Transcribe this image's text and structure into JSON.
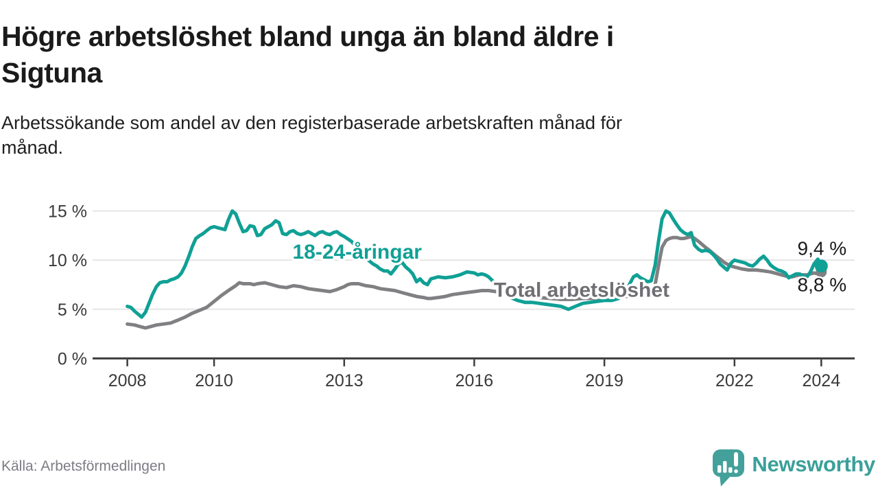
{
  "header": {
    "title_line1": "Högre arbetslöshet bland unga än bland äldre i",
    "title_line2": "Sigtuna",
    "subtitle_line1": "Arbetssökande som andel av den registerbaserade arbetskraften månad för",
    "subtitle_line2": "månad."
  },
  "footer": {
    "source": "Källa: Arbetsförmedlingen",
    "brand": "Newsworthy"
  },
  "colors": {
    "teal": "#10a095",
    "gray_line": "#808083",
    "gray_label": "#6f6f74",
    "text_dark": "#1a1a1a",
    "axis": "#3d3d3d",
    "tick_text": "#3a3a3a",
    "grid": "#e5e5e5",
    "logo_teal": "#44a09a"
  },
  "chart_data": {
    "type": "line",
    "title": "Högre arbetslöshet bland unga än bland äldre i Sigtuna",
    "subtitle": "Arbetssökande som andel av den registerbaserade arbetskraften månad för månad.",
    "x_axis": {
      "min": 2007.2,
      "max": 2024.77,
      "ticks": [
        2008,
        2010,
        2013,
        2016,
        2019,
        2022,
        2024
      ]
    },
    "y_axis": {
      "min": 0,
      "max": 15,
      "ticks": [
        0,
        5,
        10,
        15
      ],
      "tick_suffix": " %"
    },
    "grid": "horizontal",
    "legend_position": "inline-labels",
    "series": [
      {
        "name": "Total arbetslöshet",
        "color": "#808083",
        "end_value_label": "8,8 %",
        "end_dot_r": 8,
        "points": [
          [
            2008.0,
            3.5
          ],
          [
            2008.17,
            3.4
          ],
          [
            2008.33,
            3.2
          ],
          [
            2008.42,
            3.1
          ],
          [
            2008.5,
            3.2
          ],
          [
            2008.67,
            3.4
          ],
          [
            2008.83,
            3.5
          ],
          [
            2009.0,
            3.6
          ],
          [
            2009.17,
            3.9
          ],
          [
            2009.33,
            4.2
          ],
          [
            2009.5,
            4.6
          ],
          [
            2009.67,
            4.9
          ],
          [
            2009.83,
            5.2
          ],
          [
            2010.0,
            5.8
          ],
          [
            2010.17,
            6.4
          ],
          [
            2010.33,
            6.9
          ],
          [
            2010.5,
            7.4
          ],
          [
            2010.58,
            7.7
          ],
          [
            2010.67,
            7.6
          ],
          [
            2010.83,
            7.6
          ],
          [
            2010.92,
            7.5
          ],
          [
            2011.0,
            7.6
          ],
          [
            2011.17,
            7.7
          ],
          [
            2011.33,
            7.5
          ],
          [
            2011.5,
            7.3
          ],
          [
            2011.67,
            7.2
          ],
          [
            2011.83,
            7.4
          ],
          [
            2012.0,
            7.3
          ],
          [
            2012.17,
            7.1
          ],
          [
            2012.33,
            7.0
          ],
          [
            2012.5,
            6.9
          ],
          [
            2012.67,
            6.8
          ],
          [
            2012.83,
            7.0
          ],
          [
            2013.0,
            7.3
          ],
          [
            2013.08,
            7.5
          ],
          [
            2013.17,
            7.6
          ],
          [
            2013.33,
            7.6
          ],
          [
            2013.5,
            7.4
          ],
          [
            2013.67,
            7.3
          ],
          [
            2013.83,
            7.1
          ],
          [
            2014.0,
            7.0
          ],
          [
            2014.17,
            6.9
          ],
          [
            2014.33,
            6.7
          ],
          [
            2014.5,
            6.5
          ],
          [
            2014.67,
            6.3
          ],
          [
            2014.83,
            6.2
          ],
          [
            2014.92,
            6.1
          ],
          [
            2015.0,
            6.1
          ],
          [
            2015.17,
            6.2
          ],
          [
            2015.33,
            6.3
          ],
          [
            2015.5,
            6.5
          ],
          [
            2015.67,
            6.6
          ],
          [
            2015.83,
            6.7
          ],
          [
            2016.0,
            6.8
          ],
          [
            2016.17,
            6.9
          ],
          [
            2016.33,
            6.9
          ],
          [
            2016.5,
            6.8
          ],
          [
            2016.67,
            6.6
          ],
          [
            2016.83,
            6.5
          ],
          [
            2017.0,
            6.4
          ],
          [
            2017.25,
            6.3
          ],
          [
            2017.5,
            6.2
          ],
          [
            2017.75,
            6.1
          ],
          [
            2018.0,
            6.0
          ],
          [
            2018.25,
            6.0
          ],
          [
            2018.5,
            6.1
          ],
          [
            2018.75,
            6.1
          ],
          [
            2019.0,
            6.2
          ],
          [
            2019.25,
            6.2
          ],
          [
            2019.5,
            6.3
          ],
          [
            2019.75,
            6.4
          ],
          [
            2020.0,
            6.5
          ],
          [
            2020.08,
            6.6
          ],
          [
            2020.17,
            7.5
          ],
          [
            2020.25,
            9.5
          ],
          [
            2020.33,
            11.3
          ],
          [
            2020.42,
            12.0
          ],
          [
            2020.5,
            12.2
          ],
          [
            2020.58,
            12.3
          ],
          [
            2020.67,
            12.3
          ],
          [
            2020.75,
            12.2
          ],
          [
            2020.83,
            12.2
          ],
          [
            2020.92,
            12.3
          ],
          [
            2021.0,
            12.4
          ],
          [
            2021.08,
            12.2
          ],
          [
            2021.17,
            11.9
          ],
          [
            2021.25,
            11.6
          ],
          [
            2021.33,
            11.3
          ],
          [
            2021.42,
            11.0
          ],
          [
            2021.5,
            10.7
          ],
          [
            2021.58,
            10.4
          ],
          [
            2021.67,
            10.1
          ],
          [
            2021.75,
            9.8
          ],
          [
            2021.83,
            9.6
          ],
          [
            2021.92,
            9.4
          ],
          [
            2022.0,
            9.3
          ],
          [
            2022.17,
            9.1
          ],
          [
            2022.33,
            9.0
          ],
          [
            2022.5,
            9.0
          ],
          [
            2022.67,
            8.9
          ],
          [
            2022.83,
            8.8
          ],
          [
            2023.0,
            8.6
          ],
          [
            2023.17,
            8.4
          ],
          [
            2023.25,
            8.3
          ],
          [
            2023.33,
            8.3
          ],
          [
            2023.5,
            8.5
          ],
          [
            2023.67,
            8.5
          ],
          [
            2023.83,
            8.7
          ],
          [
            2023.92,
            8.6
          ],
          [
            2024.0,
            8.8
          ]
        ]
      },
      {
        "name": "18-24-åringar",
        "color": "#10a095",
        "end_value_label": "9,4 %",
        "end_dot_r": 9.5,
        "points": [
          [
            2008.0,
            5.3
          ],
          [
            2008.08,
            5.2
          ],
          [
            2008.17,
            4.8
          ],
          [
            2008.25,
            4.5
          ],
          [
            2008.33,
            4.2
          ],
          [
            2008.42,
            4.7
          ],
          [
            2008.5,
            5.6
          ],
          [
            2008.58,
            6.5
          ],
          [
            2008.67,
            7.3
          ],
          [
            2008.75,
            7.7
          ],
          [
            2008.83,
            7.8
          ],
          [
            2008.92,
            7.8
          ],
          [
            2009.0,
            8.0
          ],
          [
            2009.08,
            8.1
          ],
          [
            2009.17,
            8.3
          ],
          [
            2009.25,
            8.7
          ],
          [
            2009.33,
            9.4
          ],
          [
            2009.42,
            10.4
          ],
          [
            2009.5,
            11.4
          ],
          [
            2009.58,
            12.2
          ],
          [
            2009.67,
            12.5
          ],
          [
            2009.75,
            12.7
          ],
          [
            2009.83,
            13.0
          ],
          [
            2009.92,
            13.3
          ],
          [
            2010.0,
            13.4
          ],
          [
            2010.08,
            13.3
          ],
          [
            2010.17,
            13.2
          ],
          [
            2010.25,
            13.1
          ],
          [
            2010.33,
            14.1
          ],
          [
            2010.42,
            15.0
          ],
          [
            2010.5,
            14.7
          ],
          [
            2010.58,
            13.8
          ],
          [
            2010.67,
            12.9
          ],
          [
            2010.75,
            13.0
          ],
          [
            2010.83,
            13.5
          ],
          [
            2010.92,
            13.4
          ],
          [
            2011.0,
            12.5
          ],
          [
            2011.08,
            12.6
          ],
          [
            2011.17,
            13.2
          ],
          [
            2011.25,
            13.4
          ],
          [
            2011.33,
            13.6
          ],
          [
            2011.42,
            14.0
          ],
          [
            2011.5,
            13.8
          ],
          [
            2011.58,
            12.7
          ],
          [
            2011.67,
            12.6
          ],
          [
            2011.75,
            12.9
          ],
          [
            2011.83,
            13.0
          ],
          [
            2011.92,
            12.7
          ],
          [
            2012.0,
            12.6
          ],
          [
            2012.08,
            12.7
          ],
          [
            2012.17,
            12.9
          ],
          [
            2012.25,
            12.7
          ],
          [
            2012.33,
            12.5
          ],
          [
            2012.42,
            12.8
          ],
          [
            2012.5,
            12.9
          ],
          [
            2012.58,
            12.7
          ],
          [
            2012.67,
            12.6
          ],
          [
            2012.75,
            12.8
          ],
          [
            2012.83,
            12.9
          ],
          [
            2012.92,
            12.6
          ],
          [
            2013.0,
            12.4
          ],
          [
            2013.17,
            11.9
          ],
          [
            2013.33,
            11.1
          ],
          [
            2013.5,
            10.2
          ],
          [
            2013.67,
            9.6
          ],
          [
            2013.75,
            9.4
          ],
          [
            2013.83,
            9.1
          ],
          [
            2013.92,
            8.9
          ],
          [
            2014.0,
            8.9
          ],
          [
            2014.08,
            8.6
          ],
          [
            2014.17,
            9.1
          ],
          [
            2014.25,
            9.6
          ],
          [
            2014.33,
            9.8
          ],
          [
            2014.42,
            9.3
          ],
          [
            2014.5,
            9.0
          ],
          [
            2014.58,
            8.6
          ],
          [
            2014.67,
            7.8
          ],
          [
            2014.75,
            8.1
          ],
          [
            2014.83,
            7.7
          ],
          [
            2014.92,
            7.5
          ],
          [
            2015.0,
            8.1
          ],
          [
            2015.17,
            8.3
          ],
          [
            2015.33,
            8.2
          ],
          [
            2015.5,
            8.3
          ],
          [
            2015.67,
            8.5
          ],
          [
            2015.83,
            8.8
          ],
          [
            2016.0,
            8.7
          ],
          [
            2016.08,
            8.5
          ],
          [
            2016.17,
            8.6
          ],
          [
            2016.25,
            8.5
          ],
          [
            2016.33,
            8.3
          ],
          [
            2016.42,
            7.9
          ],
          [
            2016.5,
            7.6
          ],
          [
            2016.67,
            6.8
          ],
          [
            2016.83,
            6.2
          ],
          [
            2017.0,
            5.9
          ],
          [
            2017.17,
            5.7
          ],
          [
            2017.33,
            5.7
          ],
          [
            2017.5,
            5.6
          ],
          [
            2017.67,
            5.5
          ],
          [
            2017.83,
            5.4
          ],
          [
            2018.0,
            5.3
          ],
          [
            2018.17,
            5.0
          ],
          [
            2018.33,
            5.3
          ],
          [
            2018.5,
            5.6
          ],
          [
            2018.67,
            5.7
          ],
          [
            2018.83,
            5.8
          ],
          [
            2019.0,
            5.9
          ],
          [
            2019.17,
            5.9
          ],
          [
            2019.33,
            6.1
          ],
          [
            2019.5,
            6.9
          ],
          [
            2019.67,
            8.3
          ],
          [
            2019.75,
            8.5
          ],
          [
            2019.83,
            8.2
          ],
          [
            2019.92,
            8.0
          ],
          [
            2020.0,
            7.8
          ],
          [
            2020.08,
            7.9
          ],
          [
            2020.17,
            9.5
          ],
          [
            2020.25,
            12.0
          ],
          [
            2020.33,
            14.2
          ],
          [
            2020.42,
            15.0
          ],
          [
            2020.5,
            14.8
          ],
          [
            2020.58,
            14.2
          ],
          [
            2020.67,
            13.6
          ],
          [
            2020.75,
            13.1
          ],
          [
            2020.83,
            12.8
          ],
          [
            2020.92,
            12.6
          ],
          [
            2021.0,
            12.8
          ],
          [
            2021.08,
            11.5
          ],
          [
            2021.17,
            11.1
          ],
          [
            2021.25,
            10.9
          ],
          [
            2021.33,
            11.0
          ],
          [
            2021.42,
            10.9
          ],
          [
            2021.5,
            10.6
          ],
          [
            2021.58,
            10.2
          ],
          [
            2021.67,
            9.6
          ],
          [
            2021.75,
            9.3
          ],
          [
            2021.83,
            9.0
          ],
          [
            2021.92,
            9.7
          ],
          [
            2022.0,
            10.0
          ],
          [
            2022.08,
            9.9
          ],
          [
            2022.17,
            9.8
          ],
          [
            2022.25,
            9.7
          ],
          [
            2022.33,
            9.5
          ],
          [
            2022.42,
            9.4
          ],
          [
            2022.5,
            9.7
          ],
          [
            2022.58,
            10.1
          ],
          [
            2022.67,
            10.4
          ],
          [
            2022.75,
            10.0
          ],
          [
            2022.83,
            9.5
          ],
          [
            2022.92,
            9.2
          ],
          [
            2023.0,
            9.0
          ],
          [
            2023.08,
            8.9
          ],
          [
            2023.17,
            8.7
          ],
          [
            2023.25,
            8.2
          ],
          [
            2023.33,
            8.4
          ],
          [
            2023.42,
            8.6
          ],
          [
            2023.5,
            8.6
          ],
          [
            2023.58,
            8.4
          ],
          [
            2023.67,
            8.3
          ],
          [
            2023.75,
            8.8
          ],
          [
            2023.83,
            9.6
          ],
          [
            2023.92,
            10.1
          ],
          [
            2024.0,
            9.4
          ]
        ]
      }
    ],
    "annotations": [
      {
        "text": "18-24-åringar",
        "year": 2011.81,
        "value": 10.15,
        "color": "#10a095",
        "bold": true,
        "size": 30
      },
      {
        "text": "Total arbetslöshet",
        "year": 2016.45,
        "value": 6.28,
        "color": "#6f6f74",
        "bold": true,
        "size": 30
      },
      {
        "text": "9,4 %",
        "year": 2023.45,
        "value": 10.55,
        "color": "#1a1a1a",
        "bold": false,
        "size": 28
      },
      {
        "text": "8,8 %",
        "year": 2023.45,
        "value": 6.85,
        "color": "#1a1a1a",
        "bold": false,
        "size": 28
      }
    ]
  }
}
